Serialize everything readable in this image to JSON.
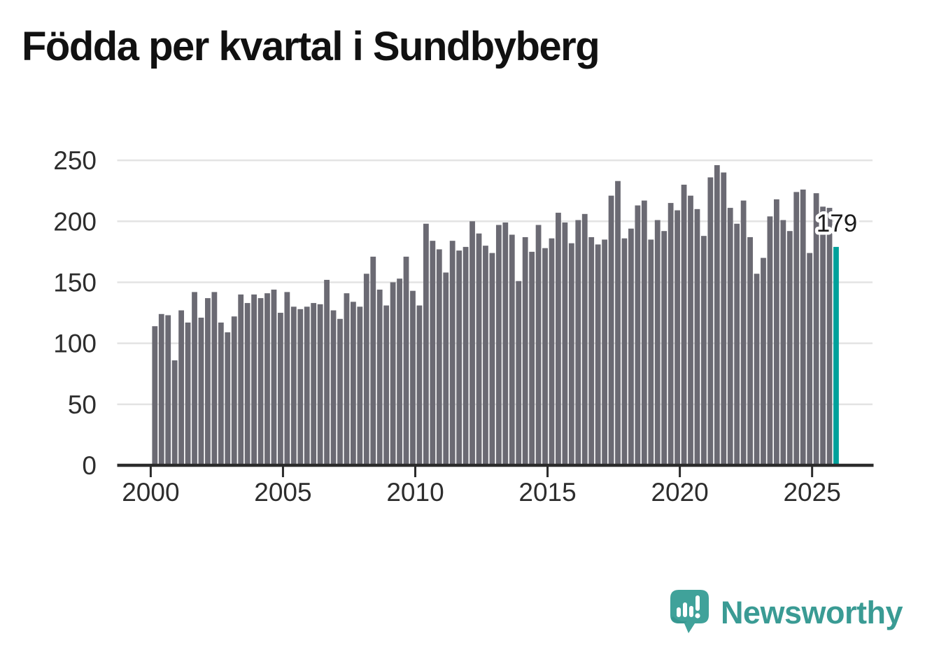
{
  "title": "Födda per kvartal i Sundbyberg",
  "annotation": {
    "last_value_label": "179"
  },
  "logo": {
    "text": "Newsworthy"
  },
  "colors": {
    "bar": "#6b6a73",
    "highlight": "#00a19b",
    "grid": "#e3e3e3",
    "axis": "#2b2b2b",
    "tick_label": "#2d2d2d",
    "title": "#111111",
    "annotation_text": "#1c1c1c",
    "annotation_halo": "#ffffff",
    "logo_teal": "#3a9b94",
    "logo_icon_teal": "#40a29a"
  },
  "chart_data": {
    "type": "bar",
    "title": "Födda per kvartal i Sundbyberg",
    "frequency": "quarterly",
    "start": "2000 Q1",
    "end": "2025 Q4",
    "x_tick_labels": [
      "2000",
      "2005",
      "2010",
      "2015",
      "2020",
      "2025"
    ],
    "y_tick_labels": [
      "0",
      "50",
      "100",
      "150",
      "200",
      "250"
    ],
    "ylim": [
      0,
      250
    ],
    "grid": "horizontal",
    "legend": "none",
    "highlight_last_bar": true,
    "last_value_label": "179",
    "series": [
      {
        "name": "Födda per kvartal",
        "values": [
          114,
          124,
          123,
          86,
          127,
          117,
          142,
          121,
          137,
          142,
          117,
          109,
          122,
          140,
          133,
          140,
          137,
          141,
          144,
          125,
          142,
          130,
          128,
          130,
          133,
          132,
          152,
          127,
          120,
          141,
          134,
          130,
          157,
          171,
          144,
          131,
          150,
          153,
          171,
          143,
          131,
          198,
          184,
          177,
          158,
          184,
          176,
          179,
          200,
          190,
          180,
          174,
          197,
          199,
          189,
          151,
          187,
          175,
          197,
          178,
          186,
          207,
          199,
          182,
          201,
          206,
          187,
          181,
          185,
          221,
          233,
          186,
          194,
          213,
          217,
          185,
          201,
          192,
          215,
          209,
          230,
          221,
          210,
          188,
          236,
          246,
          240,
          211,
          198,
          217,
          187,
          157,
          170,
          204,
          218,
          201,
          192,
          224,
          226,
          174,
          223,
          212,
          211,
          179
        ]
      }
    ]
  }
}
